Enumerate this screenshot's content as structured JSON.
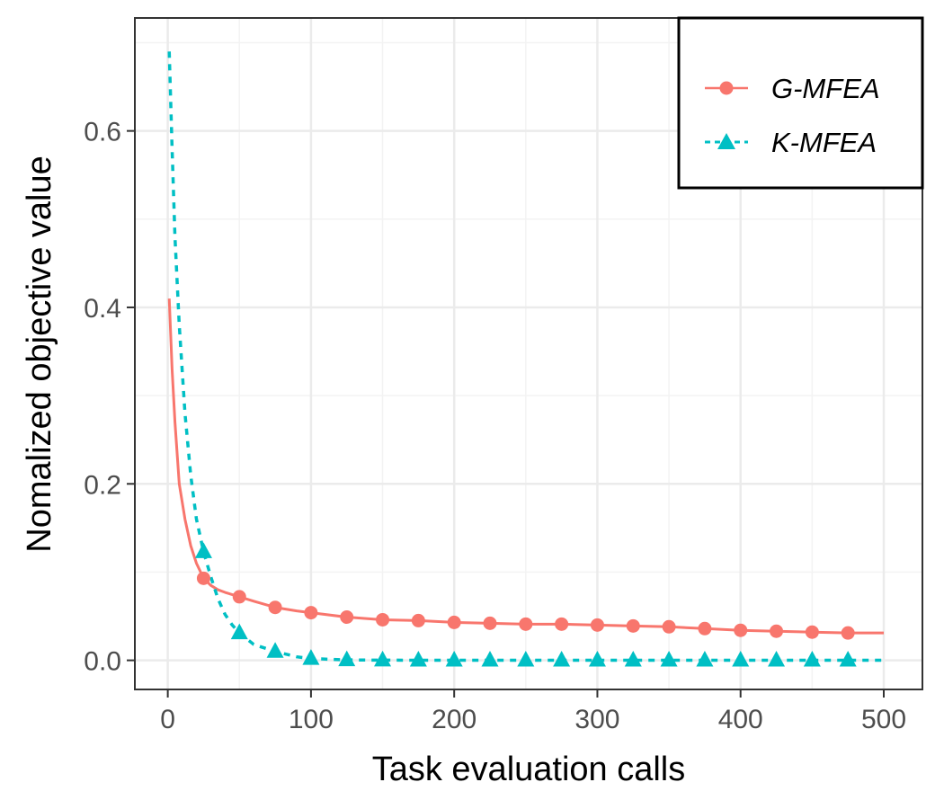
{
  "chart_data": {
    "type": "line",
    "title": "",
    "xlabel": "Task evaluation calls",
    "ylabel": "Nomalized objective value",
    "xlim": [
      -23,
      527
    ],
    "ylim": [
      -0.033,
      0.728
    ],
    "xticks": [
      0,
      100,
      200,
      300,
      400,
      500
    ],
    "xtick_labels": [
      "0",
      "100",
      "200",
      "300",
      "400",
      "500"
    ],
    "yticks": [
      0.0,
      0.2,
      0.4,
      0.6
    ],
    "ytick_labels": [
      "0.0",
      "0.2",
      "0.4",
      "0.6"
    ],
    "grid": true,
    "legend_position": "top-right",
    "series": [
      {
        "name": "G-MFEA",
        "color": "#F8766D",
        "line_style": "solid",
        "marker": "circle",
        "x": [
          1,
          3,
          5,
          8,
          12,
          16,
          20,
          25,
          30,
          35,
          40,
          50,
          60,
          75,
          90,
          100,
          125,
          150,
          175,
          200,
          225,
          250,
          275,
          300,
          325,
          350,
          375,
          400,
          425,
          450,
          475,
          500
        ],
        "values": [
          0.41,
          0.33,
          0.27,
          0.2,
          0.16,
          0.13,
          0.11,
          0.093,
          0.085,
          0.08,
          0.077,
          0.072,
          0.067,
          0.06,
          0.056,
          0.054,
          0.049,
          0.046,
          0.045,
          0.043,
          0.042,
          0.041,
          0.041,
          0.04,
          0.039,
          0.038,
          0.036,
          0.034,
          0.033,
          0.032,
          0.031,
          0.031
        ],
        "marker_x": [
          25,
          50,
          75,
          100,
          125,
          150,
          175,
          200,
          225,
          250,
          275,
          300,
          325,
          350,
          375,
          400,
          425,
          450,
          475
        ],
        "marker_values": [
          0.093,
          0.072,
          0.06,
          0.054,
          0.049,
          0.046,
          0.045,
          0.043,
          0.042,
          0.041,
          0.041,
          0.04,
          0.039,
          0.038,
          0.036,
          0.034,
          0.033,
          0.032,
          0.031
        ]
      },
      {
        "name": "K-MFEA",
        "color": "#00BFC4",
        "line_style": "dashed",
        "marker": "triangle",
        "x": [
          1,
          3,
          5,
          8,
          12,
          16,
          20,
          25,
          30,
          35,
          40,
          45,
          50,
          60,
          75,
          90,
          100,
          125,
          150,
          200,
          250,
          300,
          350,
          400,
          450,
          500
        ],
        "values": [
          0.69,
          0.58,
          0.48,
          0.38,
          0.28,
          0.21,
          0.16,
          0.123,
          0.095,
          0.07,
          0.052,
          0.04,
          0.031,
          0.018,
          0.01,
          0.004,
          0.002,
          0.0005,
          0.0002,
          0.0001,
          0.0001,
          0.0001,
          0.0001,
          0.0001,
          0.0001,
          0.0001
        ],
        "marker_x": [
          25,
          50,
          75,
          100,
          125,
          150,
          175,
          200,
          225,
          250,
          275,
          300,
          325,
          350,
          375,
          400,
          425,
          450,
          475
        ],
        "marker_values": [
          0.123,
          0.031,
          0.01,
          0.002,
          0.0005,
          0.0002,
          0.0001,
          0.0001,
          0.0001,
          0.0001,
          0.0001,
          0.0001,
          0.0001,
          0.0001,
          0.0001,
          0.0001,
          0.0001,
          0.0001,
          0.0001
        ]
      }
    ]
  }
}
